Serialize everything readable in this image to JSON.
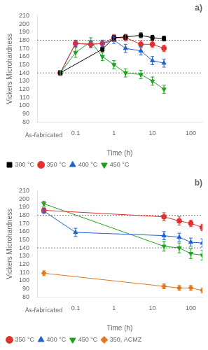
{
  "chart_data": [
    {
      "type": "line",
      "title": "a)",
      "xlabel": "Time (h)",
      "ylabel": "Vickers Microhardness",
      "log": "x",
      "xlim": [
        0.01,
        200
      ],
      "xticks": [
        0.1,
        1,
        10,
        100
      ],
      "ylim": [
        80,
        210
      ],
      "yticks": [
        80,
        90,
        100,
        110,
        120,
        130,
        140,
        150,
        160,
        170,
        180,
        190,
        200,
        210
      ],
      "grid": false,
      "legend": "lower left",
      "hlines": [
        180,
        140
      ],
      "annotations": [
        {
          "text": "As-fabricated",
          "x": 0.015
        }
      ],
      "series": [
        {
          "name": "300 °C",
          "color": "black",
          "marker": "square",
          "x": [
            0.04,
            0.5,
            1.0,
            2.0,
            5.0,
            10.0,
            20.0
          ],
          "values": [
            140,
            169,
            183,
            184,
            186,
            183,
            182
          ],
          "yerr": [
            3,
            3,
            3,
            3,
            3,
            3,
            3
          ]
        },
        {
          "name": "350 °C",
          "color": "#e03030",
          "marker": "circle",
          "x": [
            0.04,
            0.1,
            0.25,
            0.5,
            1.0,
            2.0,
            5.0,
            10.0,
            20.0
          ],
          "values": [
            140,
            176,
            175,
            176,
            183,
            183,
            175,
            175,
            170
          ],
          "yerr": [
            3,
            4,
            4,
            4,
            4,
            4,
            4,
            4,
            4
          ]
        },
        {
          "name": "400 °C",
          "color": "#2060d0",
          "marker": "triangle-up",
          "x": [
            0.04,
            0.1,
            0.25,
            0.5,
            1.0,
            2.0,
            5.0,
            10.0,
            20.0
          ],
          "values": [
            140,
            176,
            175,
            176,
            180,
            170,
            167,
            155,
            152
          ],
          "yerr": [
            3,
            4,
            4,
            4,
            4,
            5,
            5,
            5,
            5
          ]
        },
        {
          "name": "450 °C",
          "color": "#20a020",
          "marker": "triangle-down",
          "x": [
            0.04,
            0.1,
            0.25,
            0.5,
            1.0,
            2.0,
            5.0,
            10.0,
            20.0
          ],
          "values": [
            140,
            165,
            178,
            160,
            150,
            140,
            138,
            130,
            120
          ],
          "yerr": [
            3,
            6,
            5,
            5,
            5,
            5,
            5,
            5,
            5
          ]
        }
      ]
    },
    {
      "type": "line",
      "title": "b)",
      "xlabel": "Time (h)",
      "ylabel": "Vickers Microhardness",
      "log": "x",
      "xlim": [
        0.01,
        200
      ],
      "xticks": [
        0.1,
        1,
        10,
        100
      ],
      "ylim": [
        80,
        210
      ],
      "yticks": [
        80,
        90,
        100,
        110,
        120,
        130,
        140,
        150,
        160,
        170,
        180,
        190,
        200,
        210
      ],
      "grid": false,
      "legend": "lower left",
      "hlines": [
        180,
        140
      ],
      "annotations": [
        {
          "text": "As-fabricated",
          "x": 0.015
        }
      ],
      "series": [
        {
          "name": "350 °C",
          "color": "#e03030",
          "marker": "circle",
          "x": [
            0.015,
            20.0,
            50.0,
            100.0,
            200.0
          ],
          "values": [
            186,
            178,
            173,
            170,
            165
          ],
          "yerr": [
            3,
            5,
            5,
            4,
            4
          ]
        },
        {
          "name": "400 °C",
          "color": "#2060d0",
          "marker": "triangle-up",
          "x": [
            0.015,
            0.1,
            20.0,
            50.0,
            100.0,
            200.0
          ],
          "values": [
            185,
            159,
            155,
            153,
            147,
            146
          ],
          "yerr": [
            3,
            5,
            5,
            5,
            5,
            5
          ]
        },
        {
          "name": "450 °C",
          "color": "#20a020",
          "marker": "triangle-down",
          "x": [
            0.015,
            20.0,
            50.0,
            100.0,
            200.0
          ],
          "values": [
            194,
            142,
            140,
            133,
            131
          ],
          "yerr": [
            3,
            6,
            6,
            6,
            6
          ]
        },
        {
          "name": "350, ACMZ",
          "color": "#e07820",
          "marker": "diamond",
          "x": [
            0.015,
            20.0,
            50.0,
            100.0,
            200.0
          ],
          "values": [
            109,
            93,
            91,
            91,
            88
          ],
          "yerr": [
            3,
            3,
            3,
            3,
            3
          ]
        }
      ]
    }
  ]
}
